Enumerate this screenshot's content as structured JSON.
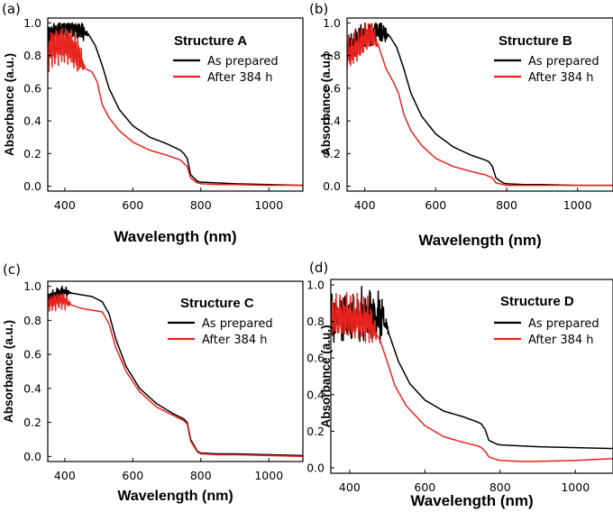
{
  "chart_data": [
    {
      "type": "line",
      "panel": "(a)",
      "title": "Structure A",
      "xlabel": "Wavelength (nm)",
      "ylabel": "Absorbance (a.u.)",
      "xlim": [
        350,
        1100
      ],
      "ylim": [
        -0.03,
        1.03
      ],
      "xticks": [
        400,
        600,
        800,
        1000
      ],
      "yticks": [
        0.0,
        0.2,
        0.4,
        0.6,
        0.8,
        1.0
      ],
      "ytick_labels": [
        "0.0",
        "0.2",
        "0.4",
        "0.6",
        "0.8",
        "1.0"
      ],
      "legend_position": "top-right",
      "series": [
        {
          "name": "As prepared",
          "color": "#000000",
          "noise": {
            "from": 350,
            "to": 470,
            "amp": 0.08,
            "freq": 1.5
          },
          "x": [
            350,
            380,
            410,
            440,
            470,
            490,
            510,
            530,
            560,
            600,
            650,
            700,
            740,
            750,
            760,
            770,
            790,
            800,
            850,
            900,
            1000,
            1100
          ],
          "y": [
            0.93,
            0.96,
            0.98,
            0.96,
            0.93,
            0.86,
            0.74,
            0.6,
            0.47,
            0.37,
            0.3,
            0.26,
            0.22,
            0.2,
            0.17,
            0.07,
            0.03,
            0.025,
            0.02,
            0.015,
            0.01,
            0.005
          ]
        },
        {
          "name": "After 384 h",
          "color": "#e8231d",
          "noise": {
            "from": 350,
            "to": 460,
            "amp": 0.15,
            "freq": 1.8
          },
          "x": [
            350,
            380,
            410,
            440,
            460,
            480,
            495,
            510,
            530,
            560,
            600,
            650,
            700,
            740,
            750,
            760,
            770,
            790,
            800,
            850,
            900,
            1000,
            1100
          ],
          "y": [
            0.82,
            0.86,
            0.86,
            0.8,
            0.72,
            0.7,
            0.64,
            0.5,
            0.42,
            0.34,
            0.27,
            0.22,
            0.19,
            0.16,
            0.14,
            0.12,
            0.05,
            0.02,
            0.015,
            0.01,
            0.01,
            0.005,
            0.005
          ]
        }
      ]
    },
    {
      "type": "line",
      "panel": "(b)",
      "title": "Structure B",
      "xlabel": "Wavelength (nm)",
      "ylabel": "Absorbance (a.u.)",
      "xlim": [
        350,
        1100
      ],
      "ylim": [
        -0.03,
        1.03
      ],
      "xticks": [
        400,
        600,
        800,
        1000
      ],
      "yticks": [
        0.0,
        0.2,
        0.4,
        0.6,
        0.8,
        1.0
      ],
      "ytick_labels": [
        "0.0",
        "0.2",
        "0.4",
        "0.6",
        "0.8",
        "1.0"
      ],
      "legend_position": "top-right",
      "series": [
        {
          "name": "As prepared",
          "color": "#000000",
          "noise": {
            "from": 350,
            "to": 470,
            "amp": 0.1,
            "freq": 1.5
          },
          "x": [
            350,
            380,
            410,
            440,
            470,
            490,
            510,
            530,
            560,
            600,
            650,
            700,
            740,
            750,
            760,
            770,
            790,
            800,
            850,
            900,
            1000,
            1100
          ],
          "y": [
            0.85,
            0.9,
            0.93,
            0.95,
            0.92,
            0.85,
            0.72,
            0.57,
            0.43,
            0.32,
            0.24,
            0.19,
            0.16,
            0.15,
            0.12,
            0.05,
            0.02,
            0.015,
            0.01,
            0.01,
            0.005,
            0.005
          ]
        },
        {
          "name": "After 384 h",
          "color": "#e8231d",
          "noise": {
            "from": 350,
            "to": 440,
            "amp": 0.12,
            "freq": 1.8
          },
          "x": [
            350,
            380,
            400,
            420,
            440,
            460,
            480,
            495,
            510,
            530,
            560,
            600,
            650,
            700,
            740,
            750,
            760,
            770,
            790,
            800,
            850,
            900,
            1000,
            1100
          ],
          "y": [
            0.8,
            0.85,
            0.9,
            0.93,
            0.85,
            0.72,
            0.64,
            0.57,
            0.44,
            0.34,
            0.25,
            0.17,
            0.12,
            0.09,
            0.07,
            0.06,
            0.05,
            0.02,
            0.01,
            0.005,
            0.005,
            0.005,
            0.005,
            0.005
          ]
        }
      ]
    },
    {
      "type": "line",
      "panel": "(c)",
      "title": "Structure C",
      "xlabel": "Wavelength (nm)",
      "ylabel": "Absorbance (a.u.)",
      "xlim": [
        350,
        1100
      ],
      "ylim": [
        -0.03,
        1.03
      ],
      "xticks": [
        400,
        600,
        800,
        1000
      ],
      "yticks": [
        0.0,
        0.2,
        0.4,
        0.6,
        0.8,
        1.0
      ],
      "ytick_labels": [
        "0.0",
        "0.2",
        "0.4",
        "0.6",
        "0.8",
        "1.0"
      ],
      "legend_position": "top-right",
      "series": [
        {
          "name": "As prepared",
          "color": "#000000",
          "noise": {
            "from": 350,
            "to": 420,
            "amp": 0.04,
            "freq": 1.5
          },
          "x": [
            350,
            380,
            400,
            420,
            450,
            480,
            510,
            530,
            550,
            580,
            620,
            670,
            720,
            750,
            760,
            770,
            790,
            800,
            850,
            900,
            1000,
            1100
          ],
          "y": [
            0.93,
            0.96,
            0.97,
            0.96,
            0.95,
            0.94,
            0.91,
            0.84,
            0.69,
            0.53,
            0.4,
            0.31,
            0.25,
            0.22,
            0.2,
            0.1,
            0.03,
            0.02,
            0.015,
            0.015,
            0.01,
            0.005
          ]
        },
        {
          "name": "After 384 h",
          "color": "#e8231d",
          "noise": {
            "from": 350,
            "to": 420,
            "amp": 0.06,
            "freq": 1.8
          },
          "x": [
            350,
            380,
            400,
            420,
            450,
            480,
            510,
            530,
            550,
            580,
            620,
            670,
            720,
            750,
            760,
            770,
            790,
            800,
            850,
            900,
            1000,
            1100
          ],
          "y": [
            0.9,
            0.92,
            0.92,
            0.89,
            0.87,
            0.86,
            0.85,
            0.78,
            0.64,
            0.5,
            0.38,
            0.29,
            0.24,
            0.21,
            0.19,
            0.09,
            0.025,
            0.015,
            0.01,
            0.01,
            0.005,
            0.0
          ]
        }
      ]
    },
    {
      "type": "line",
      "panel": "(d)",
      "title": "Structure D",
      "xlabel": "Wavelength (nm)",
      "ylabel": "Absorbance (a.u.)",
      "xlim": [
        350,
        1100
      ],
      "ylim": [
        -0.03,
        1.03
      ],
      "xticks": [
        400,
        600,
        800,
        1000
      ],
      "yticks": [
        0.0,
        0.2,
        0.4,
        0.6,
        0.8,
        1.0
      ],
      "ytick_labels": [
        "0.0",
        "0.2",
        "0.4",
        "0.6",
        "0.8",
        "1.0"
      ],
      "legend_position": "top-right",
      "series": [
        {
          "name": "As prepared",
          "color": "#000000",
          "noise": {
            "from": 350,
            "to": 505,
            "amp": 0.16,
            "freq": 2.2
          },
          "x": [
            350,
            400,
            450,
            490,
            510,
            530,
            560,
            600,
            650,
            700,
            740,
            750,
            760,
            770,
            790,
            800,
            850,
            900,
            1000,
            1100
          ],
          "y": [
            0.82,
            0.82,
            0.84,
            0.82,
            0.7,
            0.58,
            0.46,
            0.37,
            0.31,
            0.28,
            0.25,
            0.24,
            0.21,
            0.15,
            0.13,
            0.125,
            0.12,
            0.115,
            0.11,
            0.105
          ]
        },
        {
          "name": "After 384 h",
          "color": "#e8231d",
          "noise": {
            "from": 350,
            "to": 475,
            "amp": 0.15,
            "freq": 1.8
          },
          "x": [
            350,
            400,
            450,
            480,
            500,
            520,
            550,
            600,
            650,
            700,
            740,
            750,
            760,
            770,
            790,
            800,
            850,
            900,
            1000,
            1100
          ],
          "y": [
            0.82,
            0.82,
            0.8,
            0.7,
            0.58,
            0.45,
            0.34,
            0.23,
            0.17,
            0.14,
            0.12,
            0.11,
            0.09,
            0.06,
            0.045,
            0.04,
            0.035,
            0.035,
            0.04,
            0.05
          ]
        }
      ]
    }
  ]
}
